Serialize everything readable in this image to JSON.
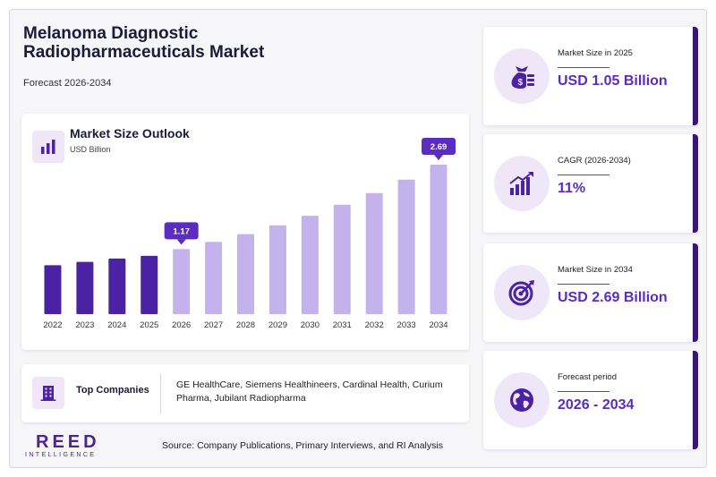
{
  "header": {
    "title": "Melanoma Diagnostic Radiopharmaceuticals Market",
    "subtitle": "Forecast 2026-2034"
  },
  "chart_card": {
    "title": "Market Size Outlook",
    "unit": "USD Billion",
    "icon": "bar-chart-icon"
  },
  "chart_data": {
    "type": "bar",
    "title": "Market Size Outlook",
    "ylabel": "USD Billion",
    "categories": [
      "2022",
      "2023",
      "2024",
      "2025",
      "2026",
      "2027",
      "2028",
      "2029",
      "2030",
      "2031",
      "2032",
      "2033",
      "2034"
    ],
    "values": [
      0.88,
      0.94,
      1.0,
      1.05,
      1.17,
      1.3,
      1.44,
      1.6,
      1.77,
      1.97,
      2.18,
      2.42,
      2.69
    ],
    "ylim": [
      0,
      2.9
    ],
    "highlight_labels": [
      {
        "category": "2026",
        "label": "1.17"
      },
      {
        "category": "2034",
        "label": "2.69"
      }
    ],
    "colors": {
      "historical": "#4b22a4",
      "forecast": "#c3b2ec",
      "callout": "#5a2cc0"
    },
    "grid": false,
    "legend": "none"
  },
  "companies": {
    "label": "Top Companies",
    "icon": "building-icon",
    "text": "GE HealthCare, Siemens Healthineers, Cardinal Health, Curium Pharma, Jubilant Radiopharma"
  },
  "logo": {
    "main": "REED",
    "sub": "INTELLIGENCE"
  },
  "source": "Source: Company Publications, Primary Interviews, and RI Analysis",
  "stats": [
    {
      "label": "Market Size in 2025",
      "value": "USD 1.05 Billion",
      "icon": "money-bag-icon"
    },
    {
      "label": "CAGR (2026-2034)",
      "value": "11%",
      "icon": "growth-chart-icon"
    },
    {
      "label": "Market Size in 2034",
      "value": "USD 2.69 Billion",
      "icon": "target-icon"
    },
    {
      "label": "Forecast period",
      "value": "2026 - 2034",
      "icon": "globe-icon"
    }
  ],
  "colors": {
    "accent": "#5a2cc0",
    "dark": "#1b1a3a",
    "edge": "#3a1578",
    "light": "#efe6f8"
  }
}
